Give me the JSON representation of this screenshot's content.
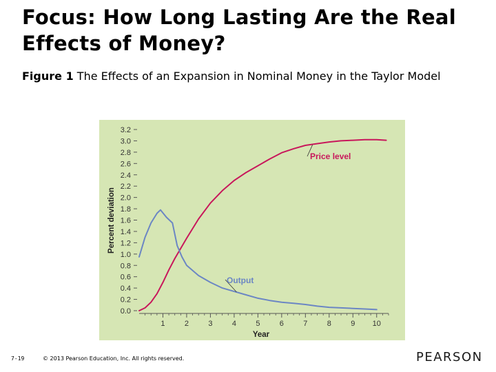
{
  "slide": {
    "title": "Focus: How Long Lasting Are the Real Effects of Money?",
    "figure_number": "Figure 1",
    "figure_caption": "The Effects of an Expansion in Nominal Money in the Taylor Model",
    "page_number": "7-19",
    "copyright": "© 2013 Pearson Education, Inc. All rights reserved.",
    "publisher": "PEARSON"
  },
  "colors": {
    "panel_background": "#d6e6b4",
    "price_level": "#c8175b",
    "output": "#6b86c4",
    "axis": "#555555"
  },
  "chart_data": {
    "type": "line",
    "title": "",
    "xlabel": "Year",
    "ylabel": "Percent deviation",
    "xlim": [
      0,
      10.5
    ],
    "ylim": [
      0,
      3.2
    ],
    "x_ticks": [
      1,
      2,
      3,
      4,
      5,
      6,
      7,
      8,
      9,
      10
    ],
    "y_ticks": [
      "0.0",
      "0.2",
      "0.4",
      "0.6",
      "0.8",
      "1.0",
      "1.2",
      "1.4",
      "1.6",
      "1.8",
      "2.0",
      "2.2",
      "2.4",
      "2.6",
      "2.8",
      "3.0",
      "3.2"
    ],
    "grid": false,
    "series": [
      {
        "name": "Price level",
        "color": "#c8175b",
        "x": [
          0,
          0.25,
          0.5,
          0.75,
          1,
          1.25,
          1.5,
          1.75,
          2,
          2.5,
          3,
          3.5,
          4,
          4.5,
          5,
          5.5,
          6,
          6.5,
          7,
          7.5,
          8,
          8.5,
          9,
          9.5,
          10,
          10.4
        ],
        "y": [
          0.0,
          0.05,
          0.15,
          0.3,
          0.5,
          0.72,
          0.92,
          1.1,
          1.28,
          1.62,
          1.9,
          2.12,
          2.3,
          2.44,
          2.56,
          2.68,
          2.79,
          2.86,
          2.92,
          2.95,
          2.98,
          3.0,
          3.01,
          3.02,
          3.02,
          3.01
        ]
      },
      {
        "name": "Output",
        "color": "#6b86c4",
        "x": [
          0,
          0.25,
          0.5,
          0.75,
          0.9,
          1.15,
          1.4,
          1.6,
          1.8,
          2,
          2.5,
          3,
          3.5,
          4,
          4.5,
          5,
          5.5,
          6,
          6.5,
          7,
          7.5,
          8,
          8.5,
          9,
          9.5,
          10
        ],
        "y": [
          0.95,
          1.3,
          1.55,
          1.72,
          1.78,
          1.65,
          1.55,
          1.15,
          0.95,
          0.8,
          0.62,
          0.5,
          0.4,
          0.34,
          0.28,
          0.22,
          0.18,
          0.15,
          0.13,
          0.11,
          0.08,
          0.06,
          0.05,
          0.04,
          0.03,
          0.02
        ]
      }
    ]
  }
}
